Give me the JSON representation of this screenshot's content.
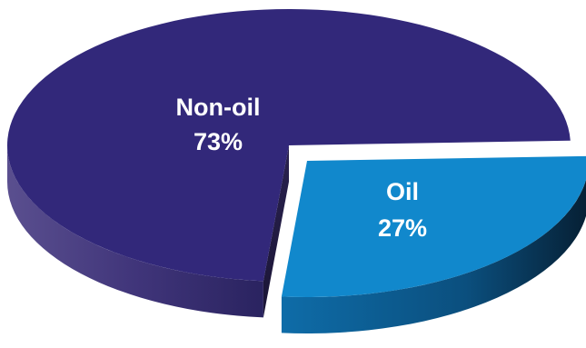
{
  "chart_data": {
    "type": "pie",
    "title": "",
    "style": "3d-exploded",
    "slices": [
      {
        "label": "Non-oil",
        "value": 73,
        "value_label": "73%",
        "color": "#32287a",
        "side_color": "#4a3f85"
      },
      {
        "label": "Oil",
        "value": 27,
        "value_label": "27%",
        "color": "#1188cc",
        "side_color": "#0d5a8a"
      }
    ]
  }
}
